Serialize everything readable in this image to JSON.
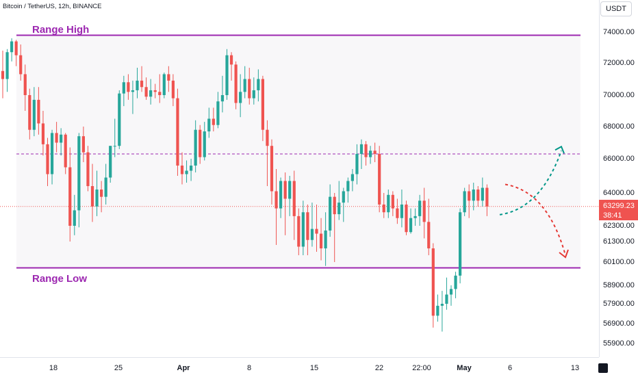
{
  "header": {
    "title": "Bitcoin / TetherUS, 12h, BINANCE",
    "currency": "USDT"
  },
  "annotations": {
    "range_high": "Range High",
    "range_low": "Range Low"
  },
  "last_price": {
    "value": "63299.23",
    "countdown": "38:41"
  },
  "colors": {
    "up": "#26a69a",
    "down": "#ef5350",
    "range": "#9c27b0",
    "range_fill": "#f8f7f9",
    "arrow_up": "#009688",
    "arrow_down": "#e53935"
  },
  "chart_data": {
    "type": "candlestick",
    "title": "Bitcoin / TetherUS, 12h, BINANCE",
    "price_ticks": [
      74000.0,
      72000.0,
      70000.0,
      68000.0,
      66000.0,
      64000.0,
      62300.0,
      61300.0,
      60100.0,
      58900.0,
      57900.0,
      56900.0,
      55900.0
    ],
    "price_tick_labels": [
      "74000.00",
      "72000.00",
      "70000.00",
      "68000.00",
      "66000.00",
      "64000.00",
      "62300.00",
      "61300.00",
      "60100.00",
      "58900.00",
      "57900.00",
      "56900.00",
      "55900.00"
    ],
    "time_ticks": [
      "18",
      "25",
      "Apr",
      "8",
      "15",
      "22",
      "22:00",
      "May",
      "6",
      "13"
    ],
    "range_high": 73800,
    "range_low": 59800,
    "mid_level": 66300,
    "projection_up_target": 66500,
    "projection_down_target": 60500,
    "candles": [
      [
        71500,
        72800,
        69800,
        71000
      ],
      [
        71000,
        72900,
        70200,
        72700
      ],
      [
        72700,
        73600,
        72100,
        73400
      ],
      [
        73400,
        73500,
        71800,
        72500
      ],
      [
        72500,
        73200,
        70900,
        71300
      ],
      [
        71300,
        71900,
        69000,
        70000
      ],
      [
        70000,
        70400,
        67200,
        67800
      ],
      [
        67800,
        70500,
        67400,
        69700
      ],
      [
        69700,
        70500,
        67500,
        68200
      ],
      [
        68200,
        69000,
        66200,
        66900
      ],
      [
        66900,
        67300,
        64400,
        65100
      ],
      [
        65100,
        67800,
        64500,
        67600
      ],
      [
        67600,
        68300,
        66400,
        67000
      ],
      [
        67000,
        67900,
        66200,
        67500
      ],
      [
        67500,
        67600,
        65100,
        65500
      ],
      [
        65500,
        66700,
        61300,
        62300
      ],
      [
        62300,
        63900,
        61700,
        63100
      ],
      [
        63100,
        67600,
        62200,
        67400
      ],
      [
        67400,
        68000,
        65800,
        66400
      ],
      [
        66400,
        66800,
        64100,
        64400
      ],
      [
        64400,
        65700,
        62500,
        63300
      ],
      [
        63300,
        65300,
        62800,
        64200
      ],
      [
        64200,
        64700,
        63000,
        63800
      ],
      [
        63800,
        65700,
        63400,
        64900
      ],
      [
        64900,
        66800,
        64600,
        66800
      ],
      [
        66800,
        68500,
        66100,
        66800
      ],
      [
        66800,
        70300,
        66600,
        70100
      ],
      [
        70100,
        71200,
        69300,
        70800
      ],
      [
        70800,
        71300,
        69700,
        70200
      ],
      [
        70200,
        70900,
        68800,
        70300
      ],
      [
        70300,
        71700,
        69800,
        70900
      ],
      [
        70900,
        71800,
        70200,
        70500
      ],
      [
        70500,
        71100,
        69700,
        69900
      ],
      [
        69900,
        71000,
        69400,
        70300
      ],
      [
        70300,
        70700,
        69800,
        70200
      ],
      [
        70200,
        71300,
        69500,
        70000
      ],
      [
        70000,
        71400,
        69800,
        71300
      ],
      [
        71300,
        71800,
        70200,
        70900
      ],
      [
        70900,
        71300,
        69300,
        69800
      ],
      [
        69800,
        70400,
        65000,
        65600
      ],
      [
        65600,
        66400,
        64500,
        65100
      ],
      [
        65100,
        65900,
        64600,
        65300
      ],
      [
        65300,
        66000,
        64700,
        65600
      ],
      [
        65600,
        68400,
        65200,
        67800
      ],
      [
        67800,
        68100,
        65700,
        66100
      ],
      [
        66100,
        68300,
        65900,
        67700
      ],
      [
        67700,
        69200,
        67300,
        68500
      ],
      [
        68500,
        69200,
        67700,
        68100
      ],
      [
        68100,
        70200,
        67900,
        69600
      ],
      [
        69600,
        71200,
        68900,
        70000
      ],
      [
        70000,
        72900,
        69700,
        72500
      ],
      [
        72500,
        72700,
        70900,
        71900
      ],
      [
        71900,
        72100,
        69100,
        69500
      ],
      [
        69500,
        71300,
        68600,
        70200
      ],
      [
        70200,
        71800,
        69800,
        71000
      ],
      [
        71000,
        71700,
        69400,
        69800
      ],
      [
        69800,
        71100,
        69400,
        70300
      ],
      [
        70300,
        71600,
        69600,
        71000
      ],
      [
        71000,
        71200,
        67100,
        67800
      ],
      [
        67800,
        68400,
        64400,
        66800
      ],
      [
        66800,
        67200,
        63400,
        64100
      ],
      [
        64100,
        65400,
        61100,
        63200
      ],
      [
        63200,
        64900,
        62700,
        64700
      ],
      [
        64700,
        65200,
        61700,
        63700
      ],
      [
        63700,
        65000,
        62800,
        64700
      ],
      [
        64700,
        65300,
        61400,
        62800
      ],
      [
        62800,
        63200,
        60500,
        61000
      ],
      [
        61000,
        63600,
        60500,
        63000
      ],
      [
        63000,
        63400,
        60500,
        61400
      ],
      [
        61400,
        63500,
        61000,
        62100
      ],
      [
        62100,
        63400,
        60700,
        61800
      ],
      [
        61800,
        62700,
        60200,
        60900
      ],
      [
        60900,
        63000,
        59900,
        62000
      ],
      [
        62000,
        64500,
        61600,
        63800
      ],
      [
        63800,
        64000,
        60100,
        62900
      ],
      [
        62900,
        64700,
        62600,
        63500
      ],
      [
        63500,
        64300,
        62500,
        64100
      ],
      [
        64100,
        64900,
        63500,
        64700
      ],
      [
        64700,
        65400,
        64100,
        65100
      ],
      [
        65100,
        66900,
        64500,
        66300
      ],
      [
        66300,
        67200,
        65400,
        66900
      ],
      [
        66900,
        67100,
        65600,
        66100
      ],
      [
        66100,
        66800,
        65700,
        66500
      ],
      [
        66500,
        67000,
        65800,
        66300
      ],
      [
        66300,
        66800,
        63000,
        63400
      ],
      [
        63400,
        64000,
        62700,
        63000
      ],
      [
        63000,
        64200,
        62700,
        63900
      ],
      [
        63900,
        64100,
        62800,
        63200
      ],
      [
        63200,
        63700,
        62400,
        62700
      ],
      [
        62700,
        64200,
        62200,
        63400
      ],
      [
        63400,
        63600,
        61700,
        61900
      ],
      [
        61900,
        63200,
        61800,
        62700
      ],
      [
        62700,
        63200,
        62300,
        62800
      ],
      [
        62800,
        63900,
        62300,
        63600
      ],
      [
        63600,
        64300,
        61500,
        62500
      ],
      [
        62500,
        63700,
        60500,
        60900
      ],
      [
        60900,
        61200,
        56700,
        57300
      ],
      [
        57300,
        58400,
        57000,
        57800
      ],
      [
        57800,
        58600,
        56500,
        57900
      ],
      [
        57900,
        59300,
        57600,
        58400
      ],
      [
        58400,
        58900,
        57800,
        58700
      ],
      [
        58700,
        59600,
        58200,
        59400
      ],
      [
        59400,
        63200,
        59000,
        63000
      ],
      [
        63000,
        64300,
        62800,
        64100
      ],
      [
        64100,
        64500,
        62700,
        63600
      ],
      [
        63600,
        64600,
        63100,
        64200
      ],
      [
        64200,
        64400,
        63300,
        63600
      ],
      [
        63600,
        64900,
        63300,
        64300
      ],
      [
        64300,
        64500,
        62800,
        63299
      ]
    ]
  }
}
